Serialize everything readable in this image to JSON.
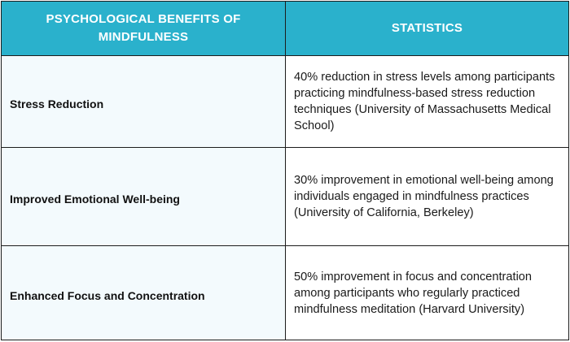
{
  "table": {
    "headers": {
      "benefit": "PSYCHOLOGICAL BENEFITS OF MINDFULNESS",
      "statistics": "STATISTICS"
    },
    "rows": [
      {
        "benefit": "Stress Reduction",
        "statistic": "40% reduction in stress levels among participants practicing mindfulness-based stress reduction techniques (University of Massachusetts Medical School)"
      },
      {
        "benefit": "Improved Emotional Well-being",
        "statistic": "30% improvement in emotional well-being among individuals engaged in mindfulness practices (University of California, Berkeley)"
      },
      {
        "benefit": "Enhanced Focus and Concentration",
        "statistic": "50% improvement in focus and concentration among participants who regularly practiced mindfulness meditation (Harvard University)"
      }
    ],
    "colors": {
      "header_bg": "#2ab1cc",
      "header_text": "#ffffff",
      "benefit_bg": "#f3fafd",
      "border": "#1c1c1c"
    }
  }
}
